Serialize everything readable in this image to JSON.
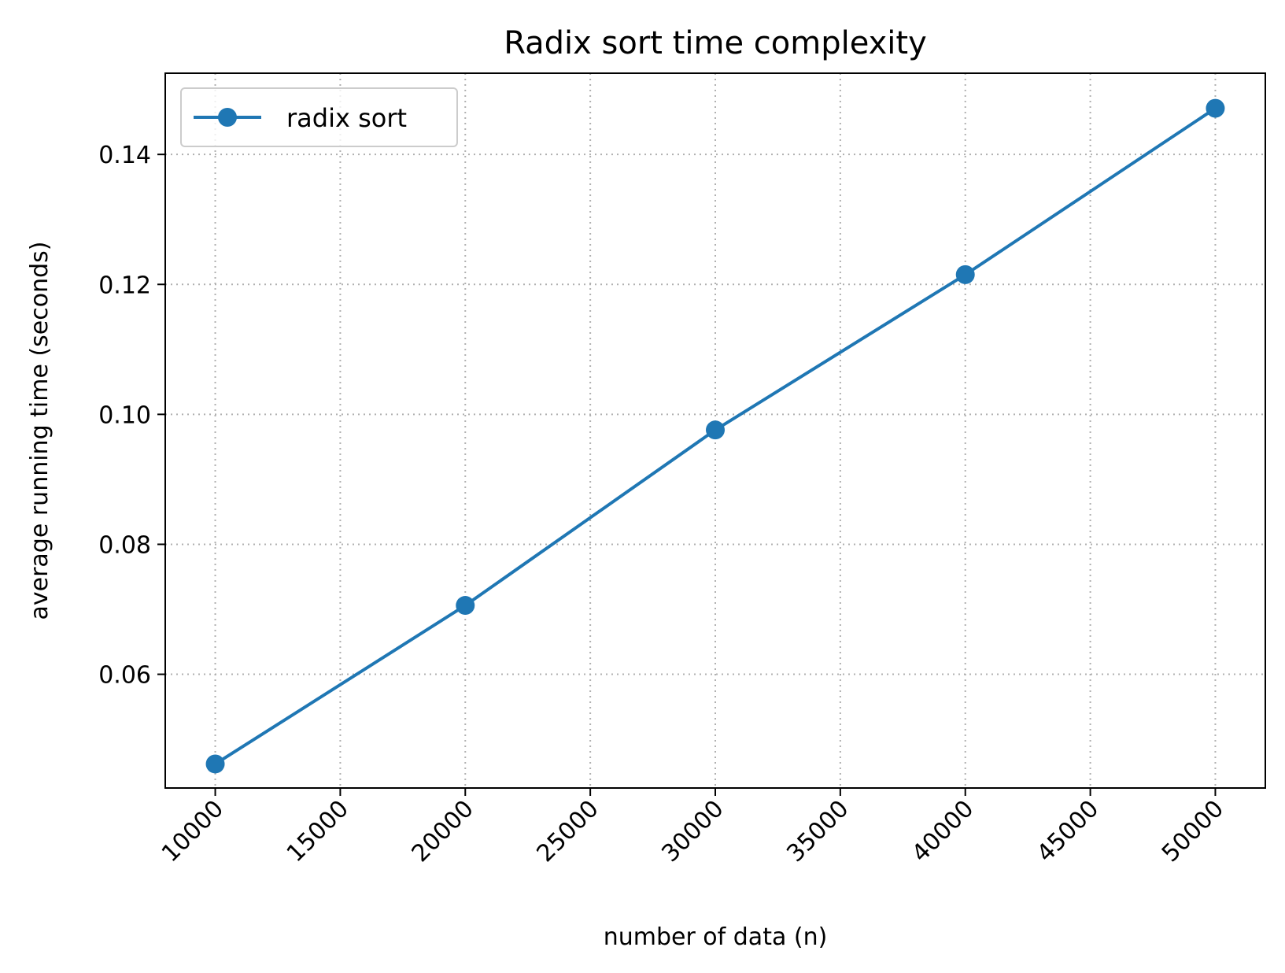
{
  "chart_data": {
    "type": "line",
    "title": "Radix sort time complexity",
    "xlabel": "number of data (n)",
    "ylabel": "average running time (seconds)",
    "xlim": [
      8000,
      52000
    ],
    "ylim": [
      0.0425,
      0.1525
    ],
    "xticks": [
      10000,
      15000,
      20000,
      25000,
      30000,
      35000,
      40000,
      45000,
      50000
    ],
    "yticks": [
      0.06,
      0.08,
      0.1,
      0.12,
      0.14
    ],
    "ytick_labels": [
      "0.06",
      "0.08",
      "0.10",
      "0.12",
      "0.14"
    ],
    "grid": true,
    "legend_position": "top-left",
    "series": [
      {
        "name": "radix sort",
        "color": "#1f77b4",
        "marker": "circle",
        "x": [
          10000,
          20000,
          30000,
          40000,
          50000
        ],
        "y": [
          0.0462,
          0.0706,
          0.0976,
          0.1215,
          0.1471
        ]
      }
    ]
  }
}
